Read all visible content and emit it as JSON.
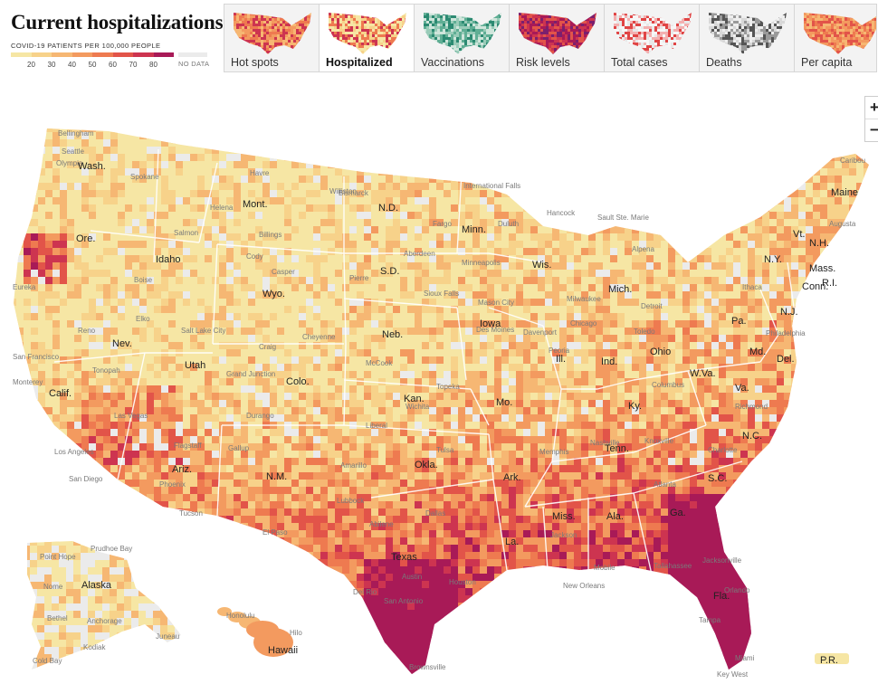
{
  "title": "Current hospitalizations",
  "legend": {
    "caption": "COVID-19 PATIENTS PER 100,000 PEOPLE",
    "colors": [
      "#f6e6a4",
      "#f7d28a",
      "#f6b773",
      "#f39a5f",
      "#ee7a50",
      "#e25449",
      "#cd3450",
      "#a81a57"
    ],
    "ticks": [
      "20",
      "30",
      "40",
      "50",
      "60",
      "70",
      "80"
    ],
    "no_data": "NO DATA",
    "no_data_color": "#ebebeb"
  },
  "tabs": [
    {
      "label": "Hot spots",
      "active": false,
      "palette": [
        "#f39a5f",
        "#cd3450",
        "#ee7a50",
        "#f6b773"
      ]
    },
    {
      "label": "Hospitalized",
      "active": true,
      "palette": [
        "#f6e6a4",
        "#f7d28a",
        "#ee7a50",
        "#cd3450"
      ]
    },
    {
      "label": "Vaccinations",
      "active": false,
      "palette": [
        "#2c8a72",
        "#5fae94",
        "#99cbb8",
        "#cfe5db"
      ]
    },
    {
      "label": "Risk levels",
      "active": false,
      "palette": [
        "#a81a57",
        "#7b1f6e",
        "#cd3450",
        "#e25449"
      ]
    },
    {
      "label": "Total cases",
      "active": false,
      "palette": [
        "#e8e8e8",
        "#f3b0b0",
        "#e04444",
        "#f6f6f6"
      ]
    },
    {
      "label": "Deaths",
      "active": false,
      "palette": [
        "#d8d8d8",
        "#9a9a9a",
        "#555555",
        "#eeeeee"
      ]
    },
    {
      "label": "Per capita",
      "active": false,
      "palette": [
        "#f39a5f",
        "#ee7a50",
        "#e25449",
        "#f6b773"
      ]
    }
  ],
  "zoom": {
    "in": "+",
    "out": "−"
  },
  "states": [
    "Wash.",
    "Ore.",
    "Idaho",
    "Mont.",
    "Wyo.",
    "Nev.",
    "Calif.",
    "Utah",
    "Colo.",
    "Ariz.",
    "N.M.",
    "N.D.",
    "S.D.",
    "Neb.",
    "Kan.",
    "Okla.",
    "Texas",
    "Minn.",
    "Iowa",
    "Mo.",
    "Ark.",
    "La.",
    "Wis.",
    "Ill.",
    "Mich.",
    "Ind.",
    "Ohio",
    "Ky.",
    "Tenn.",
    "Miss.",
    "Ala.",
    "Ga.",
    "Fla.",
    "S.C.",
    "N.C.",
    "Va.",
    "W.Va.",
    "Pa.",
    "N.Y.",
    "Vt.",
    "N.H.",
    "Maine",
    "Mass.",
    "R.I.",
    "Conn.",
    "N.J.",
    "Md.",
    "Del.",
    "Alaska",
    "Hawaii",
    "P.R."
  ],
  "cities": [
    "Bellingham",
    "Olympia",
    "Seattle",
    "Spokane",
    "Havre",
    "Williston",
    "International Falls",
    "Hancock",
    "Sault Ste. Marie",
    "Helena",
    "Salmon",
    "Billings",
    "Bismarck",
    "Fargo",
    "Duluth",
    "Alpena",
    "Caribou",
    "Augusta",
    "Boise",
    "Cody",
    "Pierre",
    "Aberdeen",
    "Minneapolis",
    "Eureka",
    "Sioux Falls",
    "Mason City",
    "Milwaukee",
    "Detroit",
    "Ithaca",
    "Casper",
    "Elko",
    "Salt Lake City",
    "Cheyenne",
    "Des Moines",
    "Davenport",
    "Chicago",
    "Peoria",
    "Toledo",
    "Philadelphia",
    "Reno",
    "San Francisco",
    "Tonopah",
    "Grand Junction",
    "Craig",
    "McCook",
    "Topeka",
    "Wichita",
    "Columbus",
    "Richmond",
    "Monterey",
    "Las Vegas",
    "Durango",
    "Liberal",
    "Nashville",
    "Knoxville",
    "Charlotte",
    "Los Angeles",
    "Flagstaff",
    "Gallup",
    "Amarillo",
    "Tulsa",
    "Memphis",
    "Atlanta",
    "San Diego",
    "Phoenix",
    "Tucson",
    "Lubbock",
    "Abilene",
    "El Paso",
    "Dallas",
    "Jackson",
    "Mobile",
    "Tallahassee",
    "Jacksonville",
    "Austin",
    "Houston",
    "New Orleans",
    "Orlando",
    "Del Rio",
    "San Antonio",
    "Tampa",
    "Brownsville",
    "Miami",
    "Key West",
    "Prudhoe Bay",
    "Point Hope",
    "Nome",
    "Bethel",
    "Anchorage",
    "Juneau",
    "Kodiak",
    "Honolulu",
    "Hilo",
    "Cold Bay"
  ]
}
